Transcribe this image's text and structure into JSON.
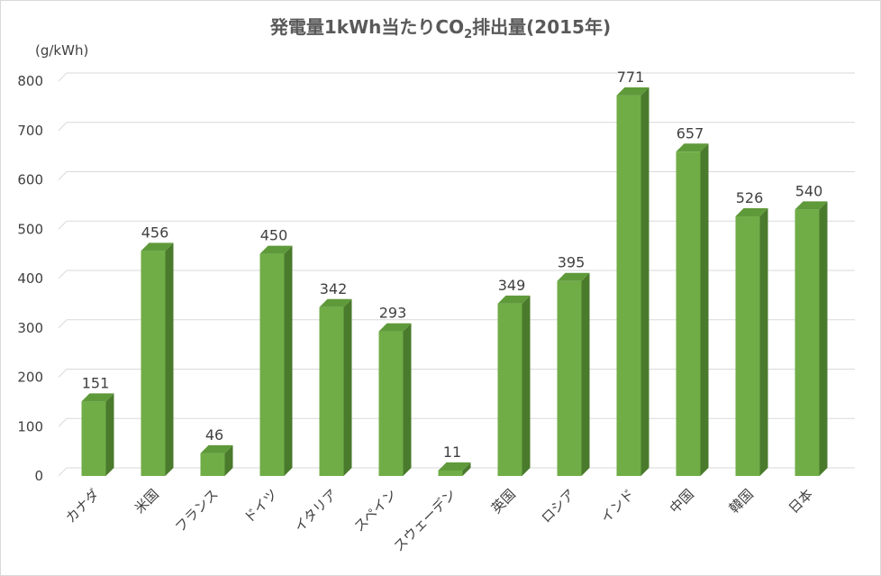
{
  "chart_data": {
    "type": "bar",
    "title_main": "発電量1kWh当たりCO",
    "title_sub": "2",
    "title_tail": "排出量(2015年)",
    "unit_label": "(g/kWh)",
    "categories": [
      "カナダ",
      "米国",
      "フランス",
      "ドイツ",
      "イタリア",
      "スペイン",
      "スウェーデン",
      "英国",
      "ロシア",
      "インド",
      "中国",
      "韓国",
      "日本"
    ],
    "values": [
      151,
      456,
      46,
      450,
      342,
      293,
      11,
      349,
      395,
      771,
      657,
      526,
      540
    ],
    "ylim": [
      0,
      800
    ],
    "yticks": [
      0,
      100,
      200,
      300,
      400,
      500,
      600,
      700,
      800
    ],
    "grid": true,
    "legend": "none",
    "colors": {
      "bar_front": "#70ad47",
      "bar_side": "#4a7a2c",
      "bar_top": "#5f9a3a"
    }
  }
}
